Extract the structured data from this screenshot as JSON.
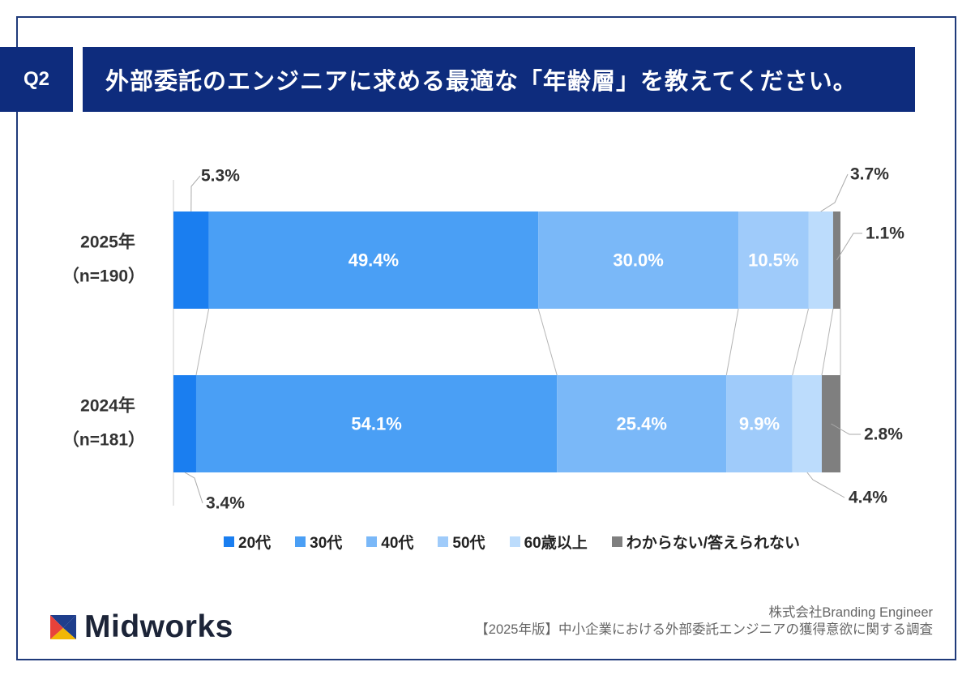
{
  "header": {
    "q_label": "Q2",
    "title": "外部委託のエンジニアに求める最適な「年齢層」を教えてください。"
  },
  "chart_data": {
    "type": "bar",
    "orientation": "horizontal",
    "stacked": true,
    "percent": true,
    "categories": [
      "2025年",
      "2024年"
    ],
    "category_sublabels": [
      "（n=190）",
      "（n=181）"
    ],
    "series": [
      {
        "name": "20代",
        "values": [
          5.3,
          3.4
        ],
        "labels": [
          "5.3%",
          "3.4%"
        ],
        "color": "#1a7ef0"
      },
      {
        "name": "30代",
        "values": [
          49.4,
          54.1
        ],
        "labels": [
          "49.4%",
          "54.1%"
        ],
        "color": "#4a9ff5"
      },
      {
        "name": "40代",
        "values": [
          30.0,
          25.4
        ],
        "labels": [
          "30.0%",
          "25.4%"
        ],
        "color": "#7ab8f8"
      },
      {
        "name": "50代",
        "values": [
          10.5,
          9.9
        ],
        "labels": [
          "10.5%",
          "9.9%"
        ],
        "color": "#9fcbfa"
      },
      {
        "name": "60歳以上",
        "values": [
          3.7,
          4.4
        ],
        "labels": [
          "3.7%",
          "4.4%"
        ],
        "color": "#bcdcfc"
      },
      {
        "name": "わからない/答えられない",
        "values": [
          1.1,
          2.8
        ],
        "labels": [
          "1.1%",
          "2.8%"
        ],
        "color": "#7f7f7f"
      }
    ],
    "legend_position": "bottom",
    "grid": false
  },
  "brand": {
    "logo_text": "Midworks",
    "colors": {
      "logo_red": "#e8423a",
      "logo_blue": "#1f3e8c",
      "logo_yellow": "#f2b705"
    }
  },
  "credit": {
    "company": "株式会社Branding Engineer",
    "survey": "【2025年版】中小企業における外部委託エンジニアの獲得意欲に関する調査"
  },
  "colors": {
    "header_bg": "#0e2c7d",
    "frame": "#1f3a7a"
  }
}
